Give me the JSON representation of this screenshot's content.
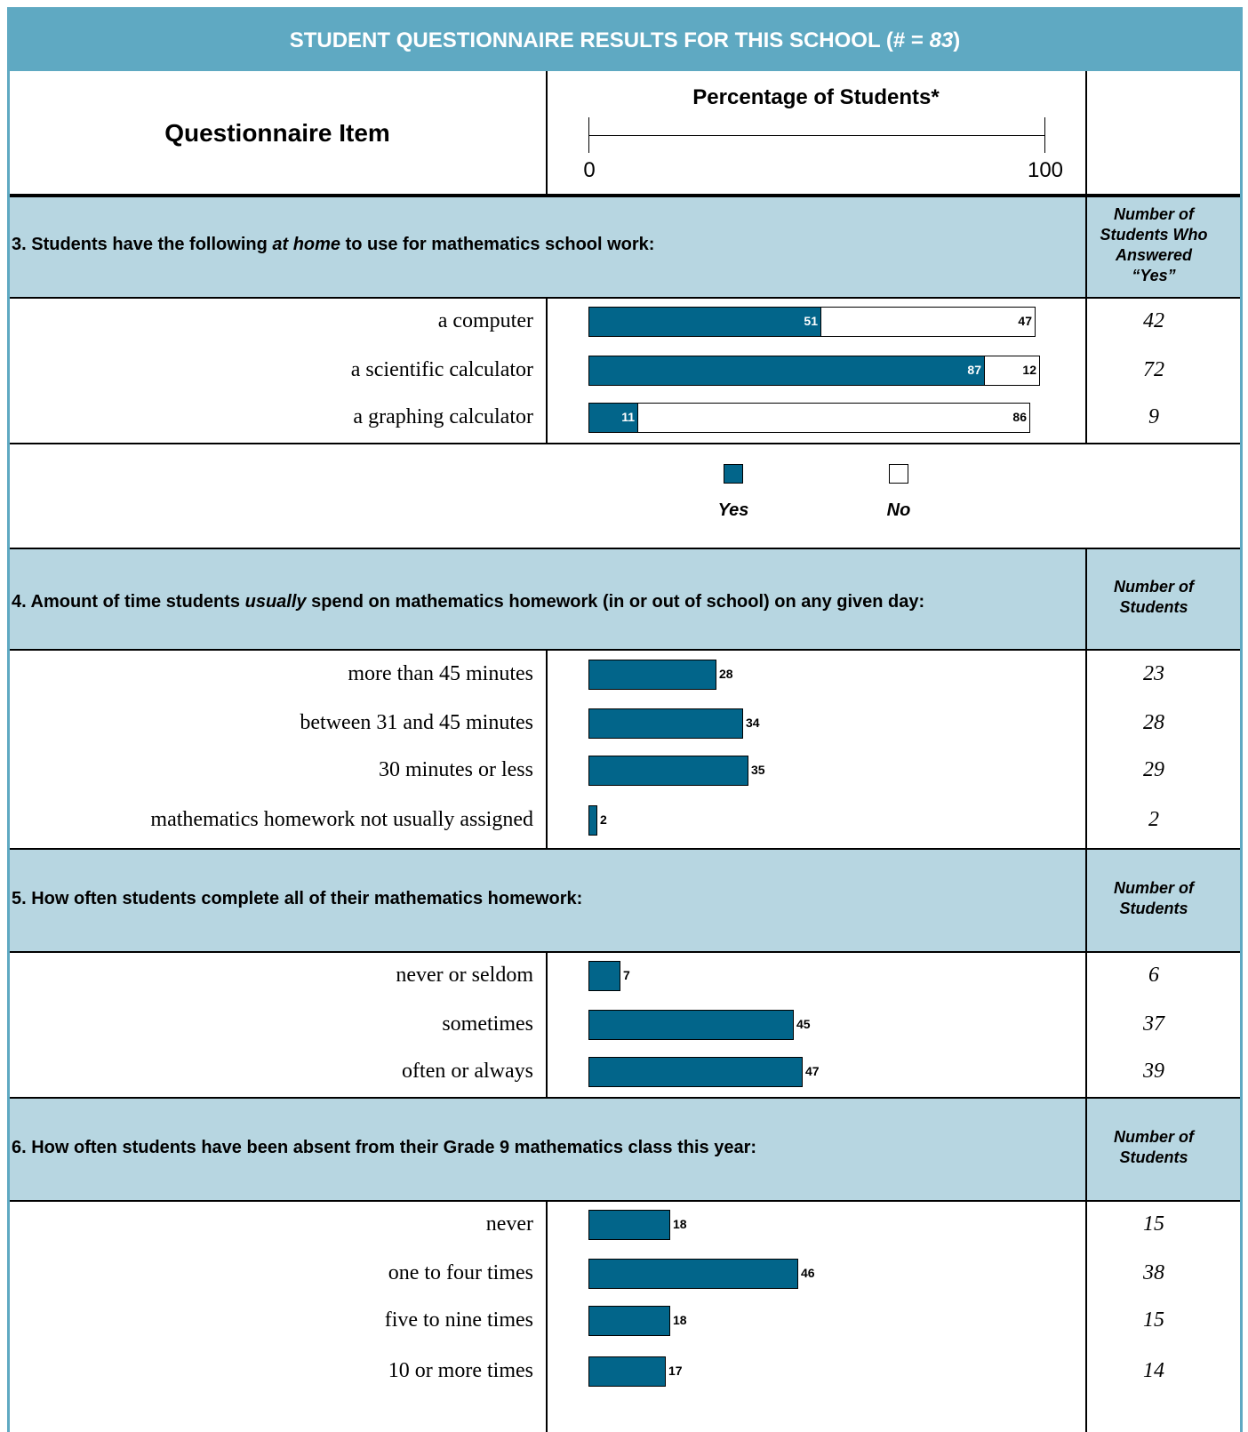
{
  "header": {
    "title_prefix": "STUDENT QUESTIONNAIRE RESULTS FOR THIS SCHOOL (# = ",
    "count": "83",
    "title_suffix": ")"
  },
  "columns": {
    "item": "Questionnaire Item",
    "percentage": "Percentage of Students*",
    "scale_min": "0",
    "scale_max": "100"
  },
  "legend": {
    "yes": "Yes",
    "no": "No"
  },
  "colors": {
    "yes": "#02658a",
    "band": "#b7d6e1",
    "header": "#5fa9c2"
  },
  "chart_data": [
    {
      "type": "bar",
      "stacked": true,
      "question": [
        "3. Students have the following ",
        "at home",
        " to use for mathematics school work:"
      ],
      "count_header": [
        "Number of",
        "Students Who",
        "Answered",
        "“Yes”"
      ],
      "xlim": [
        0,
        100
      ],
      "categories": [
        "a computer",
        "a scientific calculator",
        "a graphing calculator"
      ],
      "series": [
        {
          "name": "Yes",
          "values": [
            51,
            87,
            11
          ]
        },
        {
          "name": "No",
          "values": [
            47,
            12,
            86
          ]
        }
      ],
      "counts": [
        "42",
        "72",
        "9"
      ]
    },
    {
      "type": "bar",
      "question": [
        "4. Amount of time students ",
        "usually",
        " spend on mathematics homework (in or out of school) on any given day:"
      ],
      "count_header": [
        "Number of",
        "Students"
      ],
      "xlim": [
        0,
        100
      ],
      "categories": [
        "more than 45 minutes",
        "between 31 and 45 minutes",
        "30 minutes or less",
        "mathematics homework not usually assigned"
      ],
      "values": [
        28,
        34,
        35,
        2
      ],
      "counts": [
        "23",
        "28",
        "29",
        "2"
      ]
    },
    {
      "type": "bar",
      "question": [
        "5. How often students complete all of their mathematics homework:"
      ],
      "count_header": [
        "Number of",
        "Students"
      ],
      "xlim": [
        0,
        100
      ],
      "categories": [
        "never or seldom",
        "sometimes",
        "often or always"
      ],
      "values": [
        7,
        45,
        47
      ],
      "counts": [
        "6",
        "37",
        "39"
      ]
    },
    {
      "type": "bar",
      "question": [
        "6. How often students have been absent from their Grade 9 mathematics class this year:"
      ],
      "count_header": [
        "Number of",
        "Students"
      ],
      "xlim": [
        0,
        100
      ],
      "categories": [
        "never",
        "one to four times",
        "five to nine times",
        "10 or more times"
      ],
      "values": [
        18,
        46,
        18,
        17
      ],
      "counts": [
        "15",
        "38",
        "15",
        "14"
      ]
    }
  ]
}
